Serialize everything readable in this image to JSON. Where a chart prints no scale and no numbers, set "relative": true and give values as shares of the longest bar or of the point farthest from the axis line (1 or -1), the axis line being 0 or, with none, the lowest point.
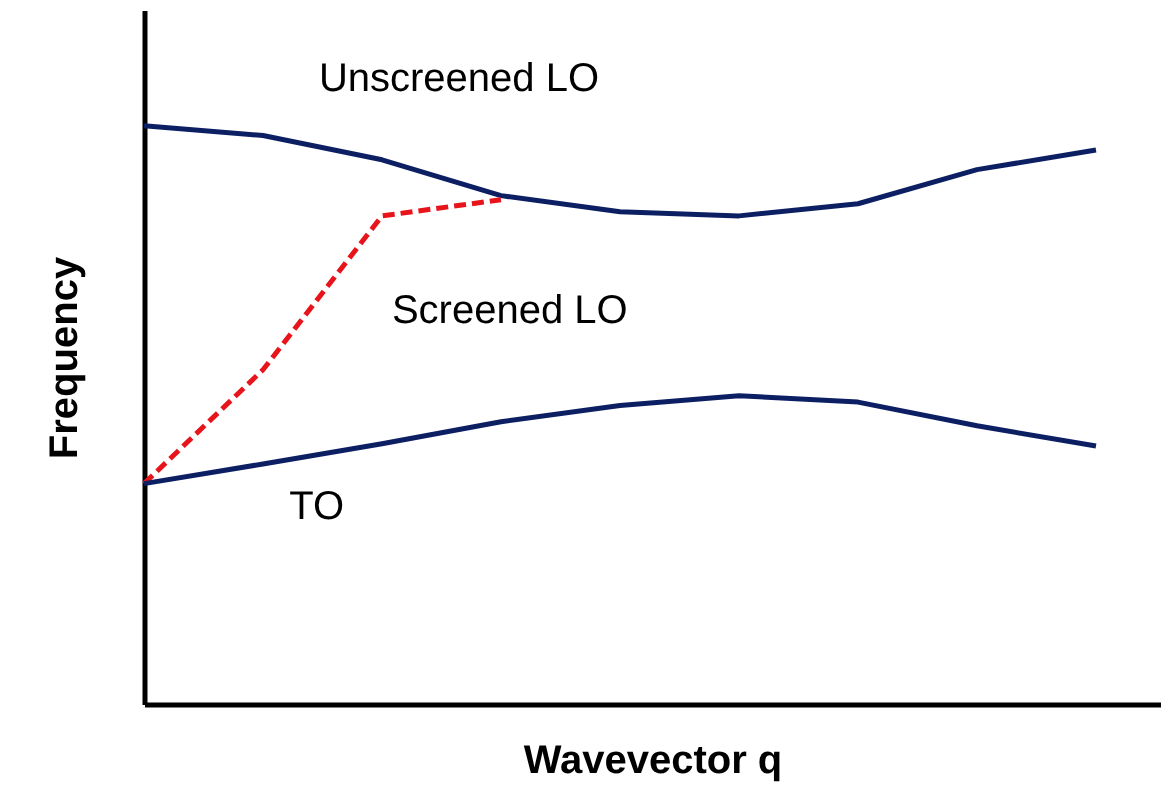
{
  "chart_data": {
    "type": "line",
    "relative": true,
    "xlabel": "Wavevector q",
    "ylabel": "Frequency",
    "tick_labels": false,
    "grid": false,
    "marker": "none",
    "categories": [
      null,
      null,
      null,
      null,
      null,
      null,
      null,
      null,
      null
    ],
    "series": [
      {
        "name": "Unscreened LO",
        "color": "#0d1f63",
        "line_style": "solid",
        "values": [
          1,
          0.983,
          0.941,
          0.879,
          0.851,
          0.844,
          0.865,
          0.924,
          0.958
        ]
      },
      {
        "name": "Screened LO",
        "color": "#e8141b",
        "line_style": "dashed",
        "values": [
          0.381,
          0.578,
          0.844,
          0.872,
          null,
          null,
          null,
          null,
          null
        ]
      },
      {
        "name": "TO",
        "color": "#0d1f63",
        "line_style": "solid",
        "values": [
          0.381,
          0.415,
          0.45,
          0.488,
          0.516,
          0.533,
          0.522,
          0.481,
          0.446
        ]
      }
    ]
  }
}
